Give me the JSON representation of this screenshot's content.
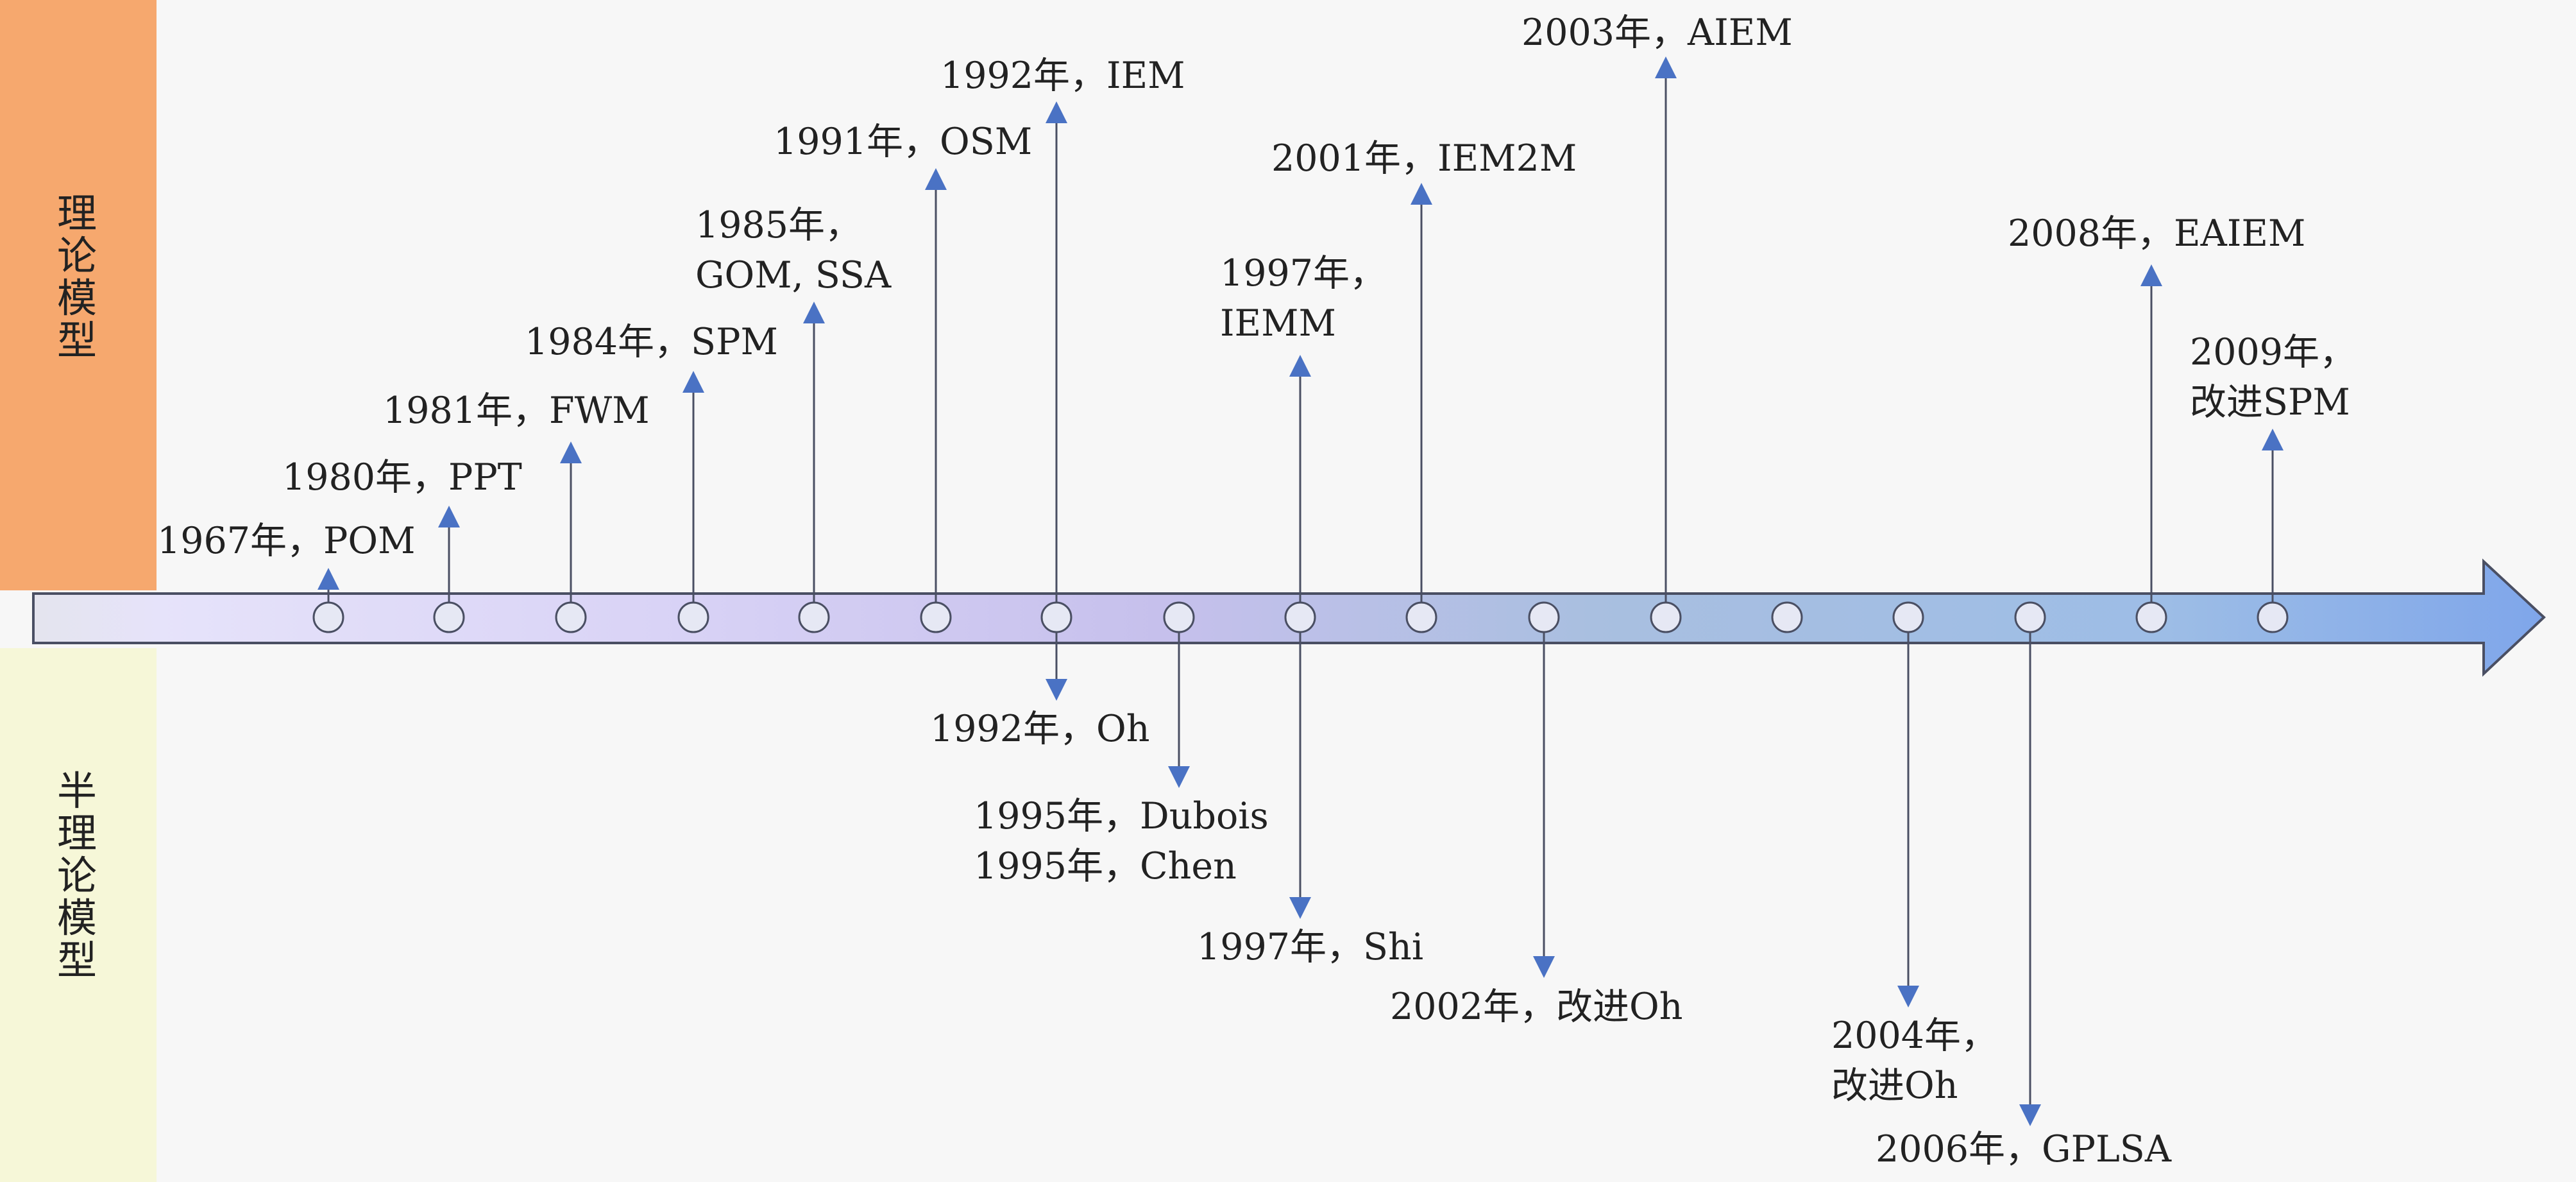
{
  "categories": {
    "theoretical": "理论模型",
    "semi_theoretical": "半理论模型"
  },
  "colors": {
    "top_band": "#f6a86e",
    "bottom_band": "#f6f7d8",
    "arrow_stem": "#4a4f63",
    "arrow_head": "#4a72c4",
    "timeline_start": "#eef0f8",
    "timeline_end": "#8fb4e8"
  },
  "events": [
    {
      "label": "1967年，POM",
      "direction": "up"
    },
    {
      "label": "1980年，PPT",
      "direction": "up"
    },
    {
      "label": "1981年，FWM",
      "direction": "up"
    },
    {
      "label": "1984年，SPM",
      "direction": "up"
    },
    {
      "label": "1985年，\nGOM, SSA",
      "direction": "up"
    },
    {
      "label": "1991年，OSM",
      "direction": "up"
    },
    {
      "label": "1992年，IEM",
      "direction": "up"
    },
    {
      "label": "1992年，Oh",
      "direction": "down"
    },
    {
      "label": "1995年，Dubois\n1995年，Chen",
      "direction": "down"
    },
    {
      "label": "1997年，\nIEMM",
      "direction": "up"
    },
    {
      "label": "1997年，Shi",
      "direction": "down"
    },
    {
      "label": "2001年，IEM2M",
      "direction": "up"
    },
    {
      "label": "2002年，改进Oh",
      "direction": "down"
    },
    {
      "label": "2003年，AIEM",
      "direction": "up"
    },
    {
      "label": "2004年，\n改进Oh",
      "direction": "down"
    },
    {
      "label": "2006年，GPLSA",
      "direction": "down"
    },
    {
      "label": "2008年，EAIEM",
      "direction": "up"
    },
    {
      "label": "2009年，\n改进SPM",
      "direction": "up"
    }
  ]
}
